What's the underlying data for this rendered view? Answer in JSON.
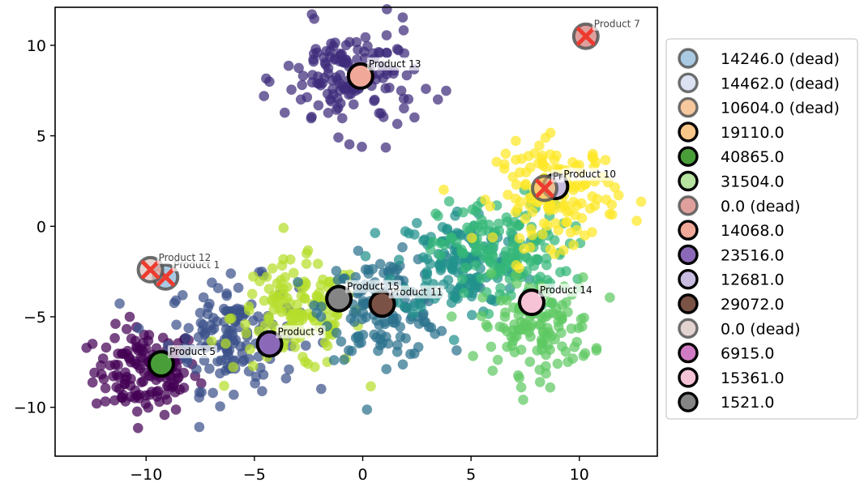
{
  "chart_data": {
    "type": "scatter",
    "title": "",
    "xlabel": "",
    "ylabel": "",
    "xlim": [
      -14.2,
      13.6
    ],
    "ylim": [
      -12.7,
      12.1
    ],
    "grid": false,
    "xticks": [
      -10,
      -5,
      0,
      5,
      10
    ],
    "yticks": [
      -10,
      -5,
      0,
      5,
      10
    ],
    "xtick_labels": [
      "−10",
      "−5",
      "0",
      "5",
      "10"
    ],
    "ytick_labels": [
      "−10",
      "−5",
      "0",
      "5",
      "10"
    ],
    "legend_position": "right-outside",
    "clusters": [
      {
        "center": [
          -10,
          -8
        ],
        "spread": 1.2,
        "count": 150,
        "color": "#440154"
      },
      {
        "center": [
          -6,
          -6
        ],
        "spread": 1.5,
        "count": 150,
        "color": "#3b528b"
      },
      {
        "center": [
          -3,
          -5
        ],
        "spread": 1.5,
        "count": 150,
        "color": "#b5de2b"
      },
      {
        "center": [
          1,
          -4.5
        ],
        "spread": 1.4,
        "count": 150,
        "color": "#2c728e"
      },
      {
        "center": [
          4.5,
          -2
        ],
        "spread": 1.5,
        "count": 150,
        "color": "#21918c"
      },
      {
        "center": [
          6.5,
          -1.5
        ],
        "spread": 1.5,
        "count": 150,
        "color": "#35b779"
      },
      {
        "center": [
          8,
          -5.5
        ],
        "spread": 1.3,
        "count": 130,
        "color": "#5ec962"
      },
      {
        "center": [
          9,
          1.8
        ],
        "spread": 1.4,
        "count": 150,
        "color": "#fde725"
      },
      {
        "center": [
          -0.6,
          8.1
        ],
        "spread": 1.5,
        "count": 150,
        "color": "#3e2d7b"
      }
    ],
    "products": [
      {
        "name": "Product 1",
        "x": -9.1,
        "y": -2.8,
        "color": "#8db8d9",
        "dead": true,
        "label": "Product 1"
      },
      {
        "name": "Product 5",
        "x": -9.3,
        "y": -7.6,
        "color": "#4a9e3a",
        "dead": false,
        "label": "Product 5"
      },
      {
        "name": "Product 7",
        "x": 10.3,
        "y": 10.5,
        "color": "#d4807c",
        "dead": true,
        "label": "Product 7"
      },
      {
        "name": "Product 9",
        "x": -4.3,
        "y": -6.5,
        "color": "#8c69b8",
        "dead": false,
        "label": "Product 9"
      },
      {
        "name": "Product 10",
        "x": 8.9,
        "y": 2.2,
        "color": "#c8bce0",
        "dead": false,
        "label": "Product 10"
      },
      {
        "name": "Product 11",
        "x": 0.9,
        "y": -4.3,
        "color": "#7b5246",
        "dead": false,
        "label": "Product 11"
      },
      {
        "name": "Product 12",
        "x": -9.8,
        "y": -2.4,
        "color": "#d9c4c0",
        "dead": true,
        "label": "Product 12"
      },
      {
        "name": "Product 13",
        "x": -0.1,
        "y": 8.3,
        "color": "#f0a899",
        "dead": false,
        "label": "Product 13"
      },
      {
        "name": "Product 14",
        "x": 7.8,
        "y": -4.2,
        "color": "#f6c3d6",
        "dead": false,
        "label": "Product 14"
      },
      {
        "name": "Product 15",
        "x": -1.1,
        "y": -4.0,
        "color": "#858585",
        "dead": false,
        "label": "Product 15"
      },
      {
        "name": "Product 3",
        "x": 8.4,
        "y": 2.1,
        "color": "#f5c27f",
        "dead": true,
        "label": "Pr"
      }
    ],
    "legend": [
      {
        "label": "14246.0 (dead)",
        "color": "#8db8d9",
        "dead": true
      },
      {
        "label": "14462.0 (dead)",
        "color": "#d0d8ee",
        "dead": true
      },
      {
        "label": "10604.0 (dead)",
        "color": "#f4b67e",
        "dead": true
      },
      {
        "label": "19110.0",
        "color": "#f9c68a",
        "dead": false
      },
      {
        "label": "40865.0",
        "color": "#4a9e3a",
        "dead": false
      },
      {
        "label": "31504.0",
        "color": "#b7e3a0",
        "dead": false
      },
      {
        "label": "0.0 (dead)",
        "color": "#d4807c",
        "dead": true
      },
      {
        "label": "14068.0",
        "color": "#f0a899",
        "dead": false
      },
      {
        "label": "23516.0",
        "color": "#8c69b8",
        "dead": false
      },
      {
        "label": "12681.0",
        "color": "#c8bce0",
        "dead": false
      },
      {
        "label": "29072.0",
        "color": "#7b5246",
        "dead": false
      },
      {
        "label": "0.0 (dead)",
        "color": "#d9c4c0",
        "dead": true
      },
      {
        "label": "6915.0",
        "color": "#cf7cc4",
        "dead": false
      },
      {
        "label": "15361.0",
        "color": "#f6c3d6",
        "dead": false
      },
      {
        "label": "1521.0",
        "color": "#858585",
        "dead": false
      }
    ]
  }
}
